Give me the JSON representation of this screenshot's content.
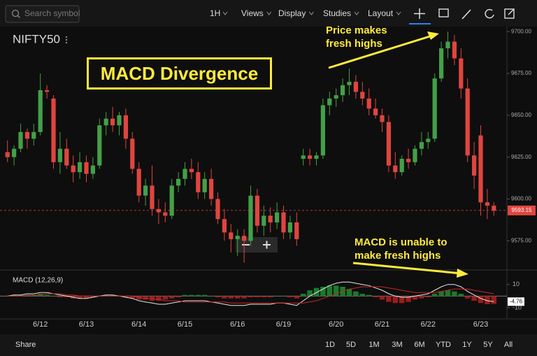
{
  "toolbar": {
    "search_placeholder": "Search symbol",
    "interval": "1H",
    "menus": [
      "Views",
      "Display",
      "Studies",
      "Layout"
    ]
  },
  "symbol": "NIFTY50",
  "annotations": [
    "MACD Divergence",
    "Price makes fresh highs",
    "MACD is unable to make fresh highs"
  ],
  "chart_data": [
    {
      "type": "candlestick",
      "categories": [
        null,
        null,
        null,
        null,
        null,
        "6/12",
        null,
        null,
        null,
        null,
        null,
        null,
        "6/13",
        null,
        null,
        null,
        null,
        null,
        null,
        null,
        "6/14",
        null,
        null,
        null,
        null,
        null,
        null,
        "6/15",
        null,
        null,
        null,
        null,
        null,
        null,
        null,
        "6/16",
        null,
        null,
        null,
        null,
        null,
        null,
        "6/19",
        null,
        null,
        null,
        null,
        null,
        null,
        null,
        "6/20",
        null,
        null,
        null,
        null,
        null,
        null,
        "6/21",
        null,
        null,
        null,
        null,
        null,
        null,
        "6/22",
        null,
        null,
        null,
        null,
        null,
        null,
        null,
        "6/23",
        null,
        null
      ],
      "open": [
        9628,
        9625,
        9630,
        9640,
        9636,
        9640,
        9665,
        9660,
        9622,
        9630,
        9620,
        9616,
        9622,
        9615,
        9620,
        9644,
        9648,
        9644,
        9650,
        9636,
        9618,
        9602,
        9608,
        9594,
        9592,
        9590,
        9608,
        9612,
        9618,
        9616,
        9604,
        9612,
        9600,
        9588,
        9580,
        9576,
        9578,
        9575,
        9602,
        9584,
        9590,
        9586,
        9592,
        9580,
        9586,
        9624,
        9626,
        9624,
        9626,
        9656,
        9660,
        9662,
        9668,
        9670,
        9664,
        9660,
        9654,
        9650,
        9646,
        9620,
        9616,
        9624,
        9622,
        9630,
        9634,
        9636,
        9672,
        9690,
        9694,
        9684,
        9666,
        9626,
        9638,
        9598,
        9596
      ],
      "high": [
        9635,
        9632,
        9645,
        9642,
        9645,
        9675,
        9668,
        9662,
        9640,
        9636,
        9626,
        9628,
        9626,
        9625,
        9648,
        9652,
        9655,
        9652,
        9654,
        9640,
        9622,
        9612,
        9620,
        9600,
        9598,
        9612,
        9616,
        9622,
        9624,
        9622,
        9616,
        9618,
        9604,
        9594,
        9585,
        9582,
        9582,
        9608,
        9606,
        9596,
        9595,
        9598,
        9596,
        9590,
        9592,
        9630,
        9630,
        9628,
        9660,
        9664,
        9666,
        9672,
        9678,
        9674,
        9670,
        9666,
        9660,
        9654,
        9650,
        9628,
        9626,
        9630,
        9632,
        9640,
        9640,
        9675,
        9694,
        9700,
        9698,
        9690,
        9672,
        9634,
        9644,
        9606,
        9598
      ],
      "low": [
        9622,
        9620,
        9628,
        9630,
        9632,
        9638,
        9660,
        9618,
        9615,
        9618,
        9610,
        9612,
        9610,
        9612,
        9618,
        9638,
        9640,
        9638,
        9630,
        9615,
        9598,
        9596,
        9590,
        9585,
        9586,
        9588,
        9604,
        9608,
        9612,
        9600,
        9600,
        9596,
        9585,
        9575,
        9568,
        9566,
        9562,
        9572,
        9580,
        9578,
        9580,
        9582,
        9576,
        9576,
        9572,
        9620,
        9620,
        9620,
        9624,
        9650,
        9655,
        9658,
        9662,
        9660,
        9656,
        9650,
        9648,
        9640,
        9616,
        9612,
        9614,
        9618,
        9620,
        9626,
        9630,
        9634,
        9670,
        9684,
        9680,
        9660,
        9622,
        9606,
        9590,
        9588,
        9590
      ],
      "close": [
        9625,
        9630,
        9640,
        9636,
        9640,
        9665,
        9664,
        9622,
        9630,
        9620,
        9616,
        9622,
        9615,
        9620,
        9644,
        9648,
        9644,
        9650,
        9636,
        9618,
        9602,
        9608,
        9594,
        9592,
        9590,
        9608,
        9612,
        9618,
        9616,
        9604,
        9612,
        9600,
        9588,
        9580,
        9576,
        9578,
        9575,
        9602,
        9584,
        9590,
        9586,
        9592,
        9580,
        9586,
        9576,
        9626,
        9624,
        9626,
        9656,
        9660,
        9662,
        9668,
        9670,
        9664,
        9660,
        9654,
        9650,
        9646,
        9620,
        9616,
        9624,
        9622,
        9630,
        9634,
        9636,
        9672,
        9690,
        9694,
        9684,
        9666,
        9626,
        9614,
        9598,
        9596,
        9593
      ],
      "up_color": "#43a047",
      "down_color": "#e0453f",
      "last_price": 9593.15,
      "ylim": [
        9558,
        9703
      ],
      "yticks": [
        {
          "value": 9575,
          "label": "9575.00"
        },
        {
          "value": 9600,
          "label": "9600.00"
        },
        {
          "value": 9625,
          "label": "9625.00"
        },
        {
          "value": 9650,
          "label": "9650.00"
        },
        {
          "value": 9675,
          "label": "9675.00"
        },
        {
          "value": 9700,
          "label": "9700.00"
        }
      ]
    },
    {
      "type": "macd",
      "title": "MACD (12,26,9)",
      "series": [
        {
          "name": "MACD",
          "kind": "line",
          "color": "#e6e6e6",
          "values": [
            0,
            1,
            1,
            2,
            2,
            3,
            3,
            2,
            1,
            0,
            -1,
            -2,
            -2,
            -1,
            0,
            1,
            1,
            0,
            -1,
            -2,
            -4,
            -5,
            -6,
            -7,
            -7,
            -6,
            -5,
            -4,
            -4,
            -4,
            -4,
            -5,
            -6,
            -7,
            -8,
            -8,
            -8,
            -7,
            -7,
            -7,
            -7,
            -6,
            -6,
            -7,
            -8,
            -4,
            0,
            3,
            6,
            9,
            11,
            12,
            12,
            11,
            10,
            9,
            7,
            5,
            2,
            0,
            -1,
            -1,
            0,
            1,
            2,
            5,
            8,
            10,
            10,
            8,
            4,
            1,
            -2,
            -4,
            -4.76
          ]
        },
        {
          "name": "Signal",
          "kind": "line",
          "color": "#c62828",
          "values": [
            0,
            0,
            0,
            1,
            1,
            1,
            2,
            2,
            2,
            1,
            1,
            0,
            0,
            0,
            0,
            0,
            0,
            0,
            0,
            0,
            -1,
            -2,
            -2,
            -3,
            -4,
            -4,
            -4,
            -5,
            -5,
            -5,
            -5,
            -5,
            -5,
            -5,
            -6,
            -6,
            -6,
            -6,
            -6,
            -6,
            -6,
            -6,
            -6,
            -6,
            -6,
            -6,
            -5,
            -4,
            -2,
            0,
            2,
            4,
            6,
            7,
            8,
            8,
            8,
            8,
            7,
            6,
            5,
            4,
            3,
            3,
            3,
            3,
            4,
            5,
            6,
            6,
            6,
            5,
            4,
            3,
            2
          ]
        },
        {
          "name": "Histogram",
          "kind": "histogram",
          "positive_color": "#1b7a2a",
          "negative_color": "#9a1c1c",
          "values": [
            0,
            1,
            1,
            1,
            1,
            2,
            1,
            0,
            -1,
            -1,
            -2,
            -2,
            -2,
            -1,
            0,
            1,
            1,
            0,
            -1,
            -2,
            -3,
            -3,
            -4,
            -4,
            -3,
            -2,
            -1,
            1,
            1,
            1,
            1,
            0,
            -1,
            -2,
            -2,
            -2,
            -2,
            -1,
            -1,
            -1,
            -1,
            0,
            0,
            -1,
            -2,
            2,
            5,
            7,
            8,
            9,
            9,
            8,
            6,
            4,
            2,
            1,
            -1,
            -3,
            -5,
            -6,
            -6,
            -5,
            -3,
            -2,
            -1,
            2,
            4,
            5,
            4,
            2,
            -2,
            -4,
            -6,
            -7,
            -6.76
          ]
        }
      ],
      "ylim": [
        -19,
        20
      ],
      "yticks": [
        -10,
        10
      ]
    }
  ],
  "footer": {
    "share": "Share",
    "ranges": [
      "1D",
      "5D",
      "1M",
      "3M",
      "6M",
      "YTD",
      "1Y",
      "5Y",
      "All"
    ]
  }
}
